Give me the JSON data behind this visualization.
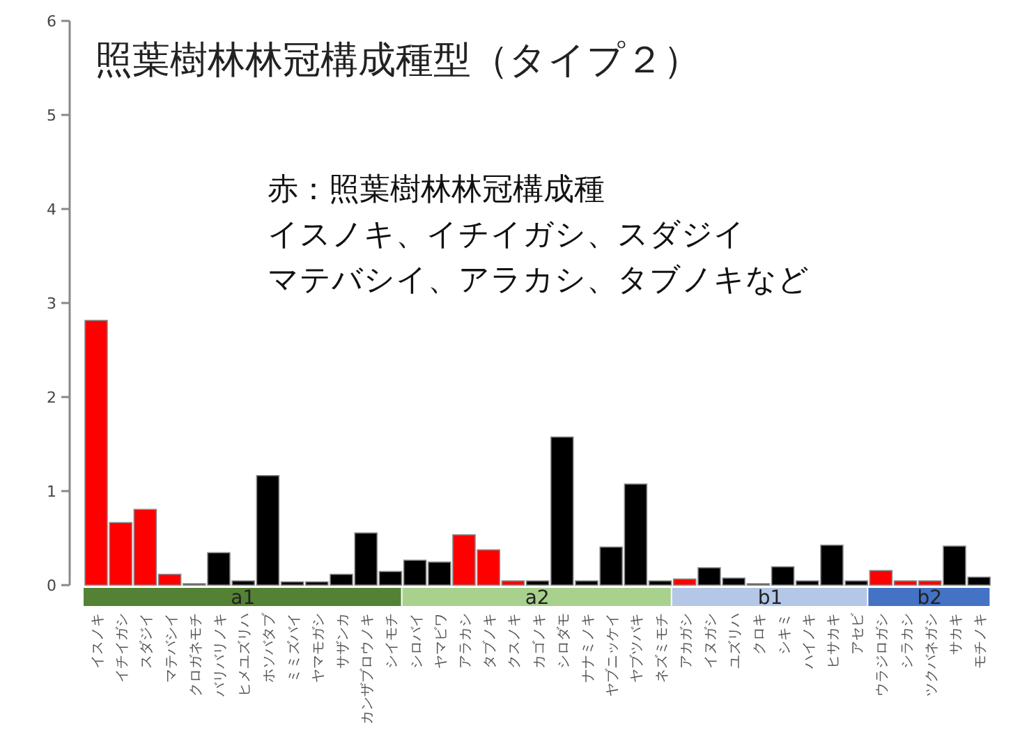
{
  "chart_data": {
    "type": "bar",
    "title": "照葉樹林林冠構成種型（タイプ２）",
    "annotations": [
      "赤：照葉樹林林冠構成種",
      "イスノキ、イチイガシ、スダジイ",
      "マテバシイ、アラカシ、タブノキなど",
      "a1",
      "a2",
      "b1",
      "b2"
    ],
    "categories": [
      "イスノキ",
      "イチイガシ",
      "スダジイ",
      "マテバシイ",
      "クロガネモチ",
      "バリバリノキ",
      "ヒメユズリハ",
      "ホソバタブ",
      "ミミズバイ",
      "ヤマモガシ",
      "サザンカ",
      "カンザブロウノキ",
      "シイモチ",
      "シロバイ",
      "ヤマビワ",
      "アラカシ",
      "タブノキ",
      "クスノキ",
      "カゴノキ",
      "シロダモ",
      "ナナミノキ",
      "ヤブニッケイ",
      "ヤブツバキ",
      "ネズミモチ",
      "アカガシ",
      "イヌガシ",
      "ユズリハ",
      "クロキ",
      "シキミ",
      "ハイノキ",
      "ヒサカキ",
      "アセビ",
      "ウラジロガシ",
      "シラカシ",
      "ツクバネガシ",
      "サカキ",
      "モチノキ"
    ],
    "values": [
      2.8,
      0.65,
      0.79,
      0.1,
      0,
      0.33,
      0.03,
      1.15,
      0.02,
      0.02,
      0.1,
      0.54,
      0.13,
      0.25,
      0.23,
      0.52,
      0.36,
      0.03,
      0.03,
      1.56,
      0.03,
      0.39,
      1.06,
      0.03,
      0.05,
      0.17,
      0.06,
      0,
      0.18,
      0.03,
      0.41,
      0.03,
      0.14,
      0.03,
      0.03,
      0.4,
      0.07
    ],
    "colors": [
      "#ff0000",
      "#ff0000",
      "#ff0000",
      "#ff0000",
      "#000000",
      "#000000",
      "#000000",
      "#000000",
      "#000000",
      "#000000",
      "#000000",
      "#000000",
      "#000000",
      "#000000",
      "#000000",
      "#ff0000",
      "#ff0000",
      "#ff0000",
      "#000000",
      "#000000",
      "#000000",
      "#000000",
      "#000000",
      "#000000",
      "#ff0000",
      "#000000",
      "#000000",
      "#000000",
      "#000000",
      "#000000",
      "#000000",
      "#000000",
      "#ff0000",
      "#ff0000",
      "#ff0000",
      "#000000",
      "#000000"
    ],
    "ylim": [
      0,
      6
    ],
    "yticks": [
      0,
      1,
      2,
      3,
      4,
      5,
      6
    ],
    "grid": false
  }
}
